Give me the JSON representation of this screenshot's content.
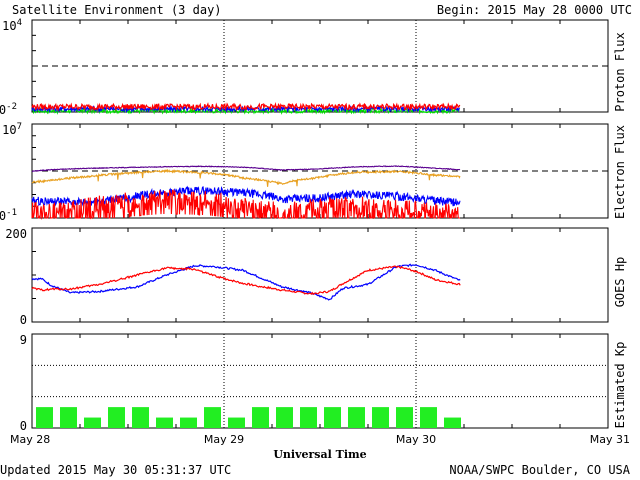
{
  "header": {
    "title": "Satellite Environment (3 day)",
    "begin": "Begin:  2015 May 28 0000 UTC"
  },
  "footer": {
    "updated": "Updated 2015 May 30 05:31:37 UTC",
    "source": "NOAA/SWPC Boulder, CO USA"
  },
  "xaxis": {
    "title": "Universal Time",
    "ticks": [
      "May 28",
      "May 29",
      "May 30",
      "May 31"
    ],
    "range_days": [
      0,
      3
    ],
    "data_end_day": 2.23
  },
  "colors": {
    "red": "#ff0000",
    "blue": "#0000ff",
    "green": "#00dd00",
    "purple": "#5a0090",
    "orange": "#e8a020",
    "kp_bar": "#22ee22"
  },
  "chart_data": [
    {
      "type": "line",
      "panel": "proton",
      "ylabel": "Proton Flux",
      "yscale": "log",
      "ylim": [
        0.01,
        10000
      ],
      "ytick_labels": {
        "top_base": "10",
        "top_exp": "4",
        "bot_base": "10",
        "bot_exp": "-2"
      },
      "threshold": 10,
      "series": [
        {
          "color_key": "red",
          "base": 0.022,
          "noise": 0.18
        },
        {
          "color_key": "blue",
          "base": 0.016,
          "noise": 0.14
        },
        {
          "color_key": "green",
          "base": 0.012,
          "noise": 0.14
        }
      ]
    },
    {
      "type": "line",
      "panel": "electron",
      "ylabel": "Electron Flux",
      "yscale": "log",
      "ylim": [
        0.1,
        10000000
      ],
      "ytick_labels": {
        "top_base": "10",
        "top_exp": "7",
        "bot_base": "10",
        "bot_exp": "-1"
      },
      "threshold": 1000,
      "series": [
        {
          "color_key": "purple",
          "x": [
            0,
            0.1,
            0.3,
            0.5,
            0.7,
            0.9,
            1.1,
            1.3,
            1.5,
            1.7,
            1.9,
            2.1,
            2.23
          ],
          "y": [
            950,
            1300,
            1700,
            2000,
            2300,
            2500,
            2100,
            1200,
            1500,
            2300,
            2600,
            1700,
            1300
          ]
        },
        {
          "color_key": "orange",
          "x": [
            0,
            0.1,
            0.3,
            0.5,
            0.7,
            0.9,
            1.1,
            1.3,
            1.5,
            1.7,
            1.9,
            2.1,
            2.23
          ],
          "y": [
            110,
            160,
            350,
            650,
            1000,
            700,
            250,
            80,
            280,
            800,
            900,
            450,
            320
          ]
        },
        {
          "color_key": "blue",
          "x": [
            0,
            0.1,
            0.3,
            0.5,
            0.7,
            0.9,
            1.1,
            1.3,
            1.5,
            1.7,
            1.9,
            2.1,
            2.23
          ],
          "y": [
            3,
            2.5,
            2,
            5,
            15,
            22,
            14,
            4,
            5,
            11,
            7,
            2.8,
            2
          ]
        },
        {
          "color_key": "red",
          "x": [
            0,
            0.1,
            0.3,
            0.5,
            0.7,
            0.9,
            1.1,
            1.3,
            1.5,
            1.7,
            1.9,
            2.1,
            2.23
          ],
          "y": [
            0.35,
            0.3,
            0.7,
            2,
            3.6,
            2.8,
            0.9,
            0.25,
            0.6,
            0.9,
            0.45,
            0.25,
            0.2
          ]
        }
      ]
    },
    {
      "type": "line",
      "panel": "goes_hp",
      "ylabel": "GOES Hp",
      "ylim": [
        0,
        200
      ],
      "ytick_labels": [
        "200",
        "0"
      ],
      "series": [
        {
          "color_key": "blue",
          "x": [
            0,
            0.05,
            0.1,
            0.2,
            0.35,
            0.55,
            0.7,
            0.85,
            0.95,
            1.1,
            1.3,
            1.45,
            1.55,
            1.62,
            1.75,
            1.9,
            2.0,
            2.1,
            2.23
          ],
          "y": [
            92,
            92,
            78,
            62,
            65,
            75,
            100,
            120,
            118,
            110,
            75,
            62,
            48,
            72,
            80,
            118,
            122,
            110,
            88
          ]
        },
        {
          "color_key": "red",
          "x": [
            0,
            0.05,
            0.1,
            0.2,
            0.35,
            0.55,
            0.7,
            0.85,
            0.95,
            1.1,
            1.3,
            1.45,
            1.55,
            1.62,
            1.75,
            1.9,
            2.0,
            2.1,
            2.23
          ],
          "y": [
            72,
            68,
            70,
            70,
            80,
            100,
            115,
            112,
            98,
            82,
            68,
            60,
            65,
            82,
            110,
            118,
            108,
            90,
            80
          ]
        }
      ]
    },
    {
      "type": "bar",
      "panel": "kp",
      "ylabel": "Estimated Kp",
      "ylim": [
        0,
        9
      ],
      "ytick_labels": [
        "9",
        "0"
      ],
      "gridlines": [
        3,
        6,
        9
      ],
      "bar_width_days": 0.125,
      "values": [
        2,
        2,
        1,
        2,
        2,
        1,
        1,
        2,
        1,
        2,
        2,
        2,
        2,
        2,
        2,
        2,
        2,
        1
      ]
    }
  ]
}
